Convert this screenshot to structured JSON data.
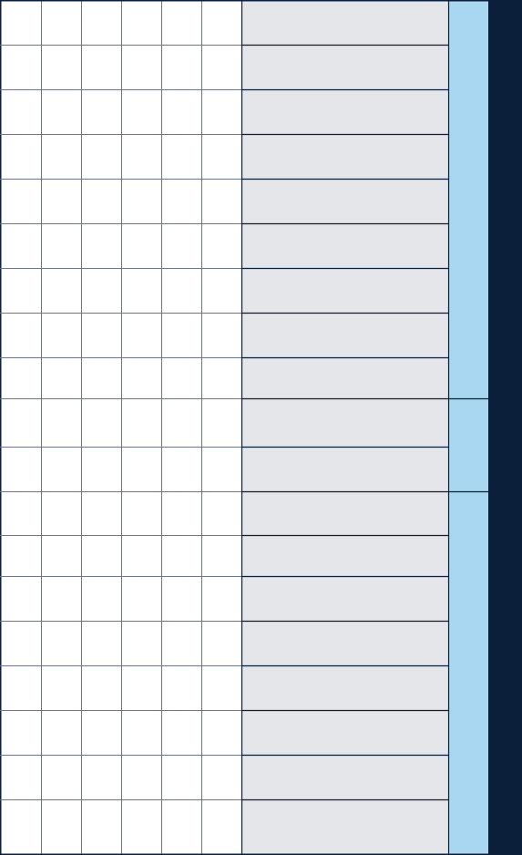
{
  "table": {
    "row_count": 19,
    "blank_column_count": 6,
    "row_groups": [
      {
        "rows": 9
      },
      {
        "rows": 2
      },
      {
        "rows": 8
      }
    ]
  },
  "colors": {
    "page_background": "#ffffff",
    "blank_cell_background": "#ffffff",
    "grid_line_light": "#6d7687",
    "grid_line_dark": "#0b1f3b",
    "gray_column": "#e4e6e9",
    "light_blue_column": "#a9d6f1",
    "navy_column": "#0b1f3b"
  }
}
